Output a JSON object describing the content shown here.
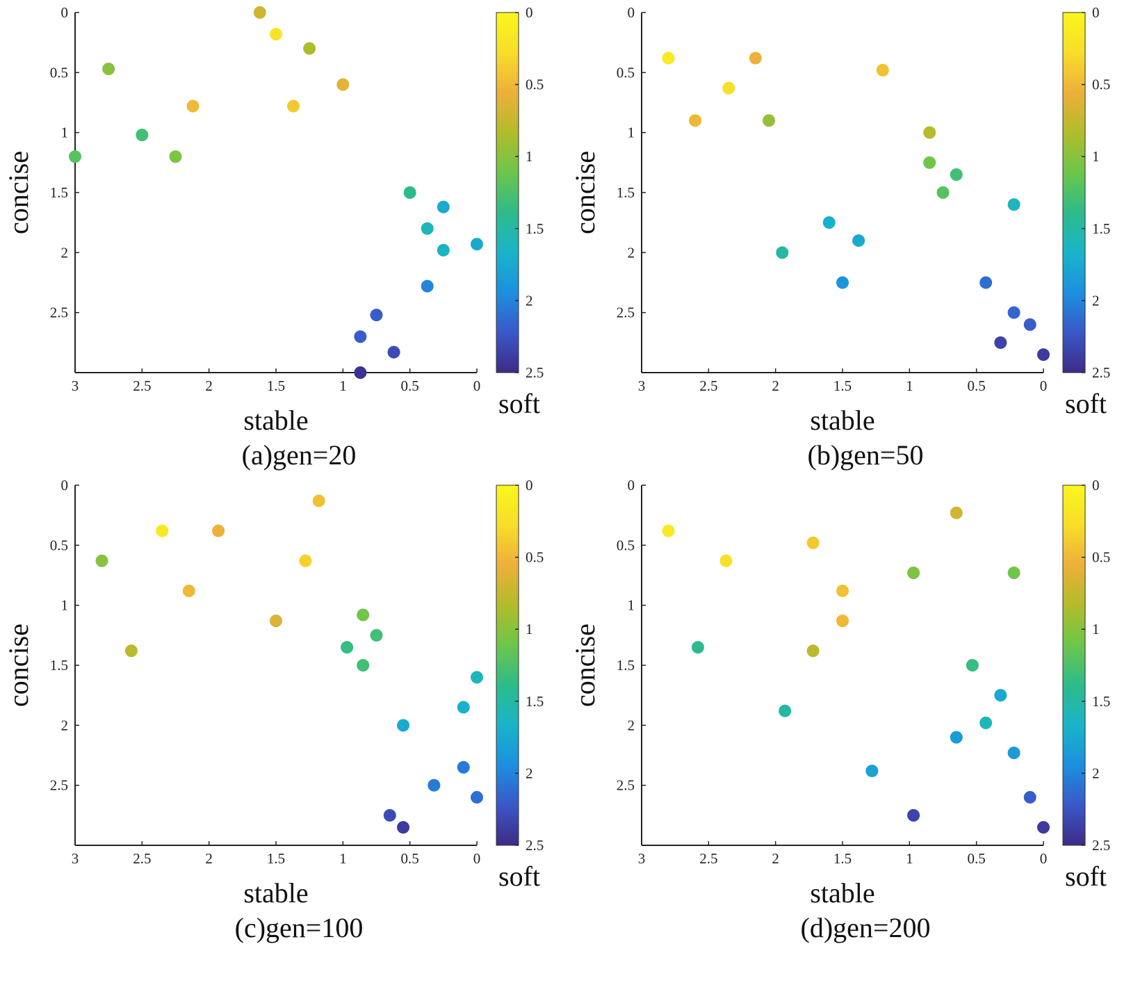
{
  "colormap": [
    "#3e2a86",
    "#3a58c8",
    "#1c8fde",
    "#19b4c9",
    "#2dbb8a",
    "#6cc64b",
    "#b2bc2a",
    "#edb03a",
    "#f8dd2a",
    "#f9f71c"
  ],
  "chart_data": [
    {
      "type": "scatter",
      "title": "(a)gen=20",
      "xlabel": "stable",
      "ylabel": "concise",
      "clabel": "soft",
      "xlim": [
        3,
        0
      ],
      "ylim": [
        0,
        3
      ],
      "clim": [
        0,
        2.5
      ],
      "xticks": [
        "3",
        "2.5",
        "2",
        "1.5",
        "1",
        "0.5",
        "0"
      ],
      "yticks": [
        "0",
        "0.5",
        "1",
        "1.5",
        "2",
        "2.5"
      ],
      "cticks": [
        "0",
        "0.5",
        "1",
        "1.5",
        "2",
        "2.5"
      ],
      "points": [
        {
          "x": 1.62,
          "y": 0.0,
          "c": 0.7
        },
        {
          "x": 1.5,
          "y": 0.18,
          "c": 0.2
        },
        {
          "x": 1.25,
          "y": 0.3,
          "c": 0.85
        },
        {
          "x": 2.75,
          "y": 0.47,
          "c": 1.0
        },
        {
          "x": 1.0,
          "y": 0.6,
          "c": 0.6
        },
        {
          "x": 2.12,
          "y": 0.78,
          "c": 0.5
        },
        {
          "x": 1.37,
          "y": 0.78,
          "c": 0.4
        },
        {
          "x": 2.5,
          "y": 1.02,
          "c": 1.3
        },
        {
          "x": 3.0,
          "y": 1.2,
          "c": 1.2
        },
        {
          "x": 2.25,
          "y": 1.2,
          "c": 1.05
        },
        {
          "x": 0.5,
          "y": 1.5,
          "c": 1.4
        },
        {
          "x": 0.25,
          "y": 1.62,
          "c": 1.75
        },
        {
          "x": 0.37,
          "y": 1.8,
          "c": 1.6
        },
        {
          "x": 0.0,
          "y": 1.93,
          "c": 1.75
        },
        {
          "x": 0.25,
          "y": 1.98,
          "c": 1.65
        },
        {
          "x": 0.37,
          "y": 2.28,
          "c": 2.0
        },
        {
          "x": 0.75,
          "y": 2.52,
          "c": 2.2
        },
        {
          "x": 0.87,
          "y": 2.7,
          "c": 2.2
        },
        {
          "x": 0.62,
          "y": 2.83,
          "c": 2.3
        },
        {
          "x": 0.87,
          "y": 3.0,
          "c": 2.45
        }
      ]
    },
    {
      "type": "scatter",
      "title": "(b)gen=50",
      "xlabel": "stable",
      "ylabel": "concise",
      "clabel": "soft",
      "xlim": [
        3,
        0
      ],
      "ylim": [
        0,
        3
      ],
      "clim": [
        0,
        2.5
      ],
      "xticks": [
        "3",
        "2.5",
        "2",
        "1.5",
        "1",
        "0.5",
        "0"
      ],
      "yticks": [
        "0",
        "0.5",
        "1",
        "1.5",
        "2",
        "2.5"
      ],
      "cticks": [
        "0",
        "0.5",
        "1",
        "1.5",
        "2",
        "2.5"
      ],
      "points": [
        {
          "x": 2.8,
          "y": 0.38,
          "c": 0.15
        },
        {
          "x": 2.15,
          "y": 0.38,
          "c": 0.55
        },
        {
          "x": 1.2,
          "y": 0.48,
          "c": 0.45
        },
        {
          "x": 2.35,
          "y": 0.63,
          "c": 0.25
        },
        {
          "x": 2.6,
          "y": 0.9,
          "c": 0.5
        },
        {
          "x": 2.05,
          "y": 0.9,
          "c": 0.95
        },
        {
          "x": 0.85,
          "y": 1.0,
          "c": 0.8
        },
        {
          "x": 0.85,
          "y": 1.25,
          "c": 1.1
        },
        {
          "x": 0.65,
          "y": 1.35,
          "c": 1.3
        },
        {
          "x": 0.75,
          "y": 1.5,
          "c": 1.2
        },
        {
          "x": 0.22,
          "y": 1.6,
          "c": 1.6
        },
        {
          "x": 1.6,
          "y": 1.75,
          "c": 1.7
        },
        {
          "x": 1.38,
          "y": 1.9,
          "c": 1.75
        },
        {
          "x": 1.95,
          "y": 2.0,
          "c": 1.5
        },
        {
          "x": 1.5,
          "y": 2.25,
          "c": 1.9
        },
        {
          "x": 0.43,
          "y": 2.25,
          "c": 2.1
        },
        {
          "x": 0.22,
          "y": 2.5,
          "c": 2.15
        },
        {
          "x": 0.1,
          "y": 2.6,
          "c": 2.2
        },
        {
          "x": 0.32,
          "y": 2.75,
          "c": 2.35
        },
        {
          "x": 0.0,
          "y": 2.85,
          "c": 2.4
        }
      ]
    },
    {
      "type": "scatter",
      "title": "(c)gen=100",
      "xlabel": "stable",
      "ylabel": "concise",
      "clabel": "soft",
      "xlim": [
        3,
        0
      ],
      "ylim": [
        0,
        3
      ],
      "clim": [
        0,
        2.5
      ],
      "xticks": [
        "3",
        "2.5",
        "2",
        "1.5",
        "1",
        "0.5",
        "0"
      ],
      "yticks": [
        "0",
        "0.5",
        "1",
        "1.5",
        "2",
        "2.5"
      ],
      "cticks": [
        "0",
        "0.5",
        "1",
        "1.5",
        "2",
        "2.5"
      ],
      "points": [
        {
          "x": 1.18,
          "y": 0.13,
          "c": 0.45
        },
        {
          "x": 2.35,
          "y": 0.38,
          "c": 0.15
        },
        {
          "x": 1.93,
          "y": 0.38,
          "c": 0.55
        },
        {
          "x": 2.8,
          "y": 0.63,
          "c": 1.0
        },
        {
          "x": 1.28,
          "y": 0.63,
          "c": 0.35
        },
        {
          "x": 2.15,
          "y": 0.88,
          "c": 0.5
        },
        {
          "x": 1.5,
          "y": 1.13,
          "c": 0.65
        },
        {
          "x": 0.85,
          "y": 1.08,
          "c": 1.1
        },
        {
          "x": 0.75,
          "y": 1.25,
          "c": 1.3
        },
        {
          "x": 0.97,
          "y": 1.35,
          "c": 1.35
        },
        {
          "x": 2.58,
          "y": 1.38,
          "c": 0.8
        },
        {
          "x": 0.85,
          "y": 1.5,
          "c": 1.3
        },
        {
          "x": 0.0,
          "y": 1.6,
          "c": 1.6
        },
        {
          "x": 0.1,
          "y": 1.85,
          "c": 1.7
        },
        {
          "x": 0.55,
          "y": 2.0,
          "c": 1.75
        },
        {
          "x": 0.1,
          "y": 2.35,
          "c": 2.05
        },
        {
          "x": 0.32,
          "y": 2.5,
          "c": 2.05
        },
        {
          "x": 0.0,
          "y": 2.6,
          "c": 2.1
        },
        {
          "x": 0.65,
          "y": 2.75,
          "c": 2.3
        },
        {
          "x": 0.55,
          "y": 2.85,
          "c": 2.4
        }
      ]
    },
    {
      "type": "scatter",
      "title": "(d)gen=200",
      "xlabel": "stable",
      "ylabel": "concise",
      "clabel": "soft",
      "xlim": [
        3,
        0
      ],
      "ylim": [
        0,
        3
      ],
      "clim": [
        0,
        2.5
      ],
      "xticks": [
        "3",
        "2.5",
        "2",
        "1.5",
        "1",
        "0.5",
        "0"
      ],
      "yticks": [
        "0",
        "0.5",
        "1",
        "1.5",
        "2",
        "2.5"
      ],
      "cticks": [
        "0",
        "0.5",
        "1",
        "1.5",
        "2",
        "2.5"
      ],
      "points": [
        {
          "x": 0.65,
          "y": 0.23,
          "c": 0.7
        },
        {
          "x": 2.8,
          "y": 0.38,
          "c": 0.15
        },
        {
          "x": 1.72,
          "y": 0.48,
          "c": 0.4
        },
        {
          "x": 2.37,
          "y": 0.63,
          "c": 0.25
        },
        {
          "x": 0.97,
          "y": 0.73,
          "c": 1.05
        },
        {
          "x": 0.22,
          "y": 0.73,
          "c": 1.1
        },
        {
          "x": 1.5,
          "y": 0.88,
          "c": 0.45
        },
        {
          "x": 1.5,
          "y": 1.13,
          "c": 0.5
        },
        {
          "x": 2.58,
          "y": 1.35,
          "c": 1.4
        },
        {
          "x": 1.72,
          "y": 1.38,
          "c": 0.8
        },
        {
          "x": 0.53,
          "y": 1.5,
          "c": 1.35
        },
        {
          "x": 0.32,
          "y": 1.75,
          "c": 1.75
        },
        {
          "x": 1.93,
          "y": 1.88,
          "c": 1.5
        },
        {
          "x": 0.43,
          "y": 1.98,
          "c": 1.6
        },
        {
          "x": 0.65,
          "y": 2.1,
          "c": 1.85
        },
        {
          "x": 0.22,
          "y": 2.23,
          "c": 1.85
        },
        {
          "x": 1.28,
          "y": 2.38,
          "c": 1.8
        },
        {
          "x": 0.1,
          "y": 2.6,
          "c": 2.2
        },
        {
          "x": 0.97,
          "y": 2.75,
          "c": 2.35
        },
        {
          "x": 0.0,
          "y": 2.85,
          "c": 2.4
        }
      ]
    }
  ]
}
